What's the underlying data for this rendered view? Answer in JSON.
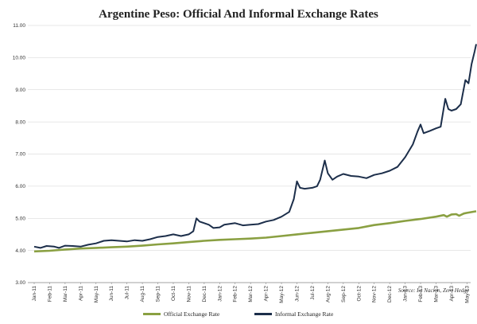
{
  "chart_data": {
    "type": "line",
    "title": "Argentine Peso: Official And Informal Exchange Rates",
    "source": "Source: La Nacion, Zero Hedge",
    "xlabel": "",
    "ylabel": "",
    "ylim": [
      3.0,
      11.0
    ],
    "yticks": [
      "3.00",
      "4.00",
      "5.00",
      "6.00",
      "7.00",
      "8.00",
      "9.00",
      "10.00",
      "11.00"
    ],
    "xticks": [
      "Jan-11",
      "Feb-11",
      "Mar-11",
      "Apr-11",
      "May-11",
      "Jun-11",
      "Jul-11",
      "Aug-11",
      "Sep-11",
      "Oct-11",
      "Nov-11",
      "Dec-11",
      "Jan-12",
      "Feb-12",
      "Mar-12",
      "Apr-12",
      "May-12",
      "Jun-12",
      "Jul-12",
      "Aug-12",
      "Sep-12",
      "Oct-12",
      "Nov-12",
      "Dec-12",
      "Jan-13",
      "Feb-13",
      "Mar-13",
      "Apr-13",
      "May-13"
    ],
    "grid": "horizontal",
    "legend_position": "bottom",
    "colors": {
      "official": "#8aa042",
      "informal": "#1c2e4a",
      "grid": "#d0d0d0"
    },
    "series": [
      {
        "name": "Official Exchange Rate",
        "points": [
          [
            0,
            3.97
          ],
          [
            1,
            3.99
          ],
          [
            2,
            4.03
          ],
          [
            3,
            4.06
          ],
          [
            4,
            4.08
          ],
          [
            5,
            4.1
          ],
          [
            6,
            4.12
          ],
          [
            7,
            4.15
          ],
          [
            8,
            4.19
          ],
          [
            9,
            4.22
          ],
          [
            10,
            4.26
          ],
          [
            11,
            4.3
          ],
          [
            12,
            4.33
          ],
          [
            13,
            4.35
          ],
          [
            14,
            4.37
          ],
          [
            15,
            4.4
          ],
          [
            16,
            4.45
          ],
          [
            17,
            4.5
          ],
          [
            18,
            4.55
          ],
          [
            19,
            4.6
          ],
          [
            20,
            4.65
          ],
          [
            21,
            4.7
          ],
          [
            22,
            4.79
          ],
          [
            23,
            4.85
          ],
          [
            24,
            4.92
          ],
          [
            25,
            4.98
          ],
          [
            26,
            5.05
          ],
          [
            26.5,
            5.1
          ],
          [
            26.7,
            5.05
          ],
          [
            27,
            5.12
          ],
          [
            27.3,
            5.13
          ],
          [
            27.5,
            5.08
          ],
          [
            27.8,
            5.15
          ],
          [
            28,
            5.17
          ],
          [
            28.6,
            5.22
          ]
        ]
      },
      {
        "name": "Informal Exchange Rate",
        "points": [
          [
            0,
            4.12
          ],
          [
            0.4,
            4.08
          ],
          [
            0.8,
            4.14
          ],
          [
            1.3,
            4.12
          ],
          [
            1.6,
            4.08
          ],
          [
            2,
            4.15
          ],
          [
            2.5,
            4.14
          ],
          [
            3,
            4.12
          ],
          [
            3.5,
            4.18
          ],
          [
            4,
            4.22
          ],
          [
            4.5,
            4.3
          ],
          [
            5,
            4.32
          ],
          [
            5.5,
            4.3
          ],
          [
            6,
            4.28
          ],
          [
            6.5,
            4.32
          ],
          [
            7,
            4.3
          ],
          [
            7.5,
            4.35
          ],
          [
            8,
            4.42
          ],
          [
            8.5,
            4.45
          ],
          [
            9,
            4.5
          ],
          [
            9.5,
            4.45
          ],
          [
            10,
            4.5
          ],
          [
            10.3,
            4.6
          ],
          [
            10.5,
            5.0
          ],
          [
            10.7,
            4.9
          ],
          [
            11,
            4.85
          ],
          [
            11.3,
            4.8
          ],
          [
            11.6,
            4.7
          ],
          [
            12,
            4.72
          ],
          [
            12.3,
            4.8
          ],
          [
            13,
            4.85
          ],
          [
            13.5,
            4.78
          ],
          [
            14,
            4.8
          ],
          [
            14.5,
            4.82
          ],
          [
            15,
            4.9
          ],
          [
            15.5,
            4.95
          ],
          [
            16,
            5.05
          ],
          [
            16.5,
            5.2
          ],
          [
            16.8,
            5.6
          ],
          [
            17,
            6.15
          ],
          [
            17.2,
            5.95
          ],
          [
            17.5,
            5.92
          ],
          [
            18,
            5.95
          ],
          [
            18.3,
            6.0
          ],
          [
            18.5,
            6.2
          ],
          [
            18.8,
            6.8
          ],
          [
            19,
            6.4
          ],
          [
            19.3,
            6.2
          ],
          [
            19.6,
            6.3
          ],
          [
            20,
            6.38
          ],
          [
            20.5,
            6.32
          ],
          [
            21,
            6.3
          ],
          [
            21.5,
            6.25
          ],
          [
            22,
            6.35
          ],
          [
            22.5,
            6.4
          ],
          [
            23,
            6.48
          ],
          [
            23.5,
            6.6
          ],
          [
            24,
            6.9
          ],
          [
            24.5,
            7.3
          ],
          [
            24.8,
            7.7
          ],
          [
            25,
            7.92
          ],
          [
            25.2,
            7.65
          ],
          [
            25.6,
            7.72
          ],
          [
            26,
            7.8
          ],
          [
            26.3,
            7.85
          ],
          [
            26.6,
            8.72
          ],
          [
            26.8,
            8.4
          ],
          [
            27,
            8.35
          ],
          [
            27.3,
            8.4
          ],
          [
            27.6,
            8.55
          ],
          [
            27.9,
            9.3
          ],
          [
            28.1,
            9.2
          ],
          [
            28.3,
            9.8
          ],
          [
            28.5,
            10.2
          ],
          [
            28.6,
            10.42
          ]
        ]
      }
    ]
  }
}
